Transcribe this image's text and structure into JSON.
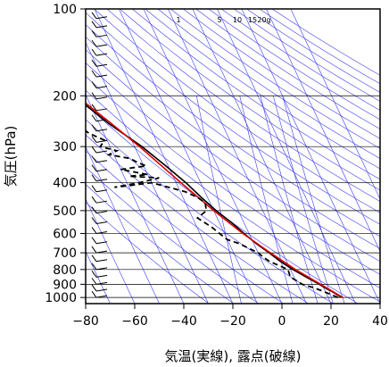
{
  "chart_data": {
    "type": "line",
    "title": "",
    "xlabel": "気温(実線), 露点(破線)",
    "ylabel": "気圧(hPa)",
    "xlim": [
      -80,
      40
    ],
    "ylim_hpa": [
      1050,
      100
    ],
    "y_scale": "log",
    "x_ticks": [
      {
        "value": -80,
        "label": "−80"
      },
      {
        "value": -60,
        "label": "−60"
      },
      {
        "value": -40,
        "label": "−40"
      },
      {
        "value": -20,
        "label": "−20"
      },
      {
        "value": 0,
        "label": "0"
      },
      {
        "value": 20,
        "label": "20"
      },
      {
        "value": 40,
        "label": "40"
      }
    ],
    "y_ticks": [
      {
        "value": 100,
        "label": "100"
      },
      {
        "value": 200,
        "label": "200"
      },
      {
        "value": 300,
        "label": "300"
      },
      {
        "value": 400,
        "label": "400"
      },
      {
        "value": 500,
        "label": "500"
      },
      {
        "value": 600,
        "label": "600"
      },
      {
        "value": 700,
        "label": "700"
      },
      {
        "value": 800,
        "label": "800"
      },
      {
        "value": 900,
        "label": "900"
      },
      {
        "value": 1000,
        "label": "1000"
      }
    ],
    "mixing_ratio_labels": [
      {
        "value": 1,
        "label": "1"
      },
      {
        "value": 5,
        "label": "5"
      },
      {
        "value": 10,
        "label": "10"
      },
      {
        "value": 15,
        "label": "15"
      },
      {
        "value": 20,
        "label": "20g"
      }
    ],
    "series": [
      {
        "style": "solid",
        "color": "#000000",
        "points": [
          [
            1000,
            25.5
          ],
          [
            950,
            22.5
          ],
          [
            925,
            20.5
          ],
          [
            900,
            19
          ],
          [
            850,
            15
          ],
          [
            800,
            11
          ],
          [
            750,
            7.5
          ],
          [
            700,
            4.5
          ],
          [
            650,
            1
          ],
          [
            600,
            -2
          ],
          [
            550,
            -5
          ],
          [
            500,
            -9
          ],
          [
            450,
            -12.5
          ],
          [
            400,
            -16
          ],
          [
            350,
            -21
          ],
          [
            300,
            -27
          ],
          [
            250,
            -36
          ],
          [
            200,
            -45
          ],
          [
            180,
            -50
          ],
          [
            160,
            -55
          ],
          [
            140,
            -60
          ],
          [
            130,
            -62.5
          ],
          [
            120,
            -66
          ],
          [
            110,
            -70.5
          ],
          [
            100,
            -72
          ]
        ]
      },
      {
        "style": "solid",
        "color": "#dd0000",
        "points": [
          [
            1000,
            26
          ],
          [
            900,
            19.5
          ],
          [
            800,
            12
          ],
          [
            700,
            5
          ],
          [
            600,
            -2.5
          ],
          [
            500,
            -10
          ],
          [
            400,
            -18
          ],
          [
            300,
            -28
          ],
          [
            250,
            -35
          ],
          [
            200,
            -44
          ],
          [
            150,
            -56
          ],
          [
            120,
            -68
          ]
        ]
      },
      {
        "style": "dashed",
        "color": "#000000",
        "points": [
          [
            1000,
            24
          ],
          [
            950,
            19
          ],
          [
            925,
            16
          ],
          [
            900,
            12
          ],
          [
            870,
            10
          ],
          [
            850,
            8.5
          ],
          [
            800,
            9
          ],
          [
            750,
            3
          ],
          [
            720,
            1
          ],
          [
            700,
            0
          ],
          [
            650,
            -6
          ],
          [
            630,
            -10
          ],
          [
            600,
            -12
          ],
          [
            570,
            -14
          ],
          [
            550,
            -16
          ],
          [
            530,
            -18
          ],
          [
            500,
            -13
          ],
          [
            470,
            -12
          ],
          [
            450,
            -14
          ],
          [
            430,
            -18
          ],
          [
            410,
            -26
          ],
          [
            400,
            -30
          ],
          [
            410,
            -40
          ],
          [
            415,
            -46
          ],
          [
            400,
            -35
          ],
          [
            385,
            -26
          ],
          [
            380,
            -38
          ],
          [
            375,
            -30
          ],
          [
            360,
            -40
          ],
          [
            350,
            -29
          ],
          [
            340,
            -32
          ],
          [
            330,
            -34
          ],
          [
            320,
            -42
          ],
          [
            310,
            -38
          ],
          [
            300,
            -44
          ],
          [
            285,
            -41
          ],
          [
            270,
            -46
          ],
          [
            258,
            -48
          ],
          [
            255,
            -60
          ],
          [
            252,
            -68
          ],
          [
            255,
            -75
          ]
        ]
      }
    ],
    "legend": "none",
    "grid": true
  }
}
